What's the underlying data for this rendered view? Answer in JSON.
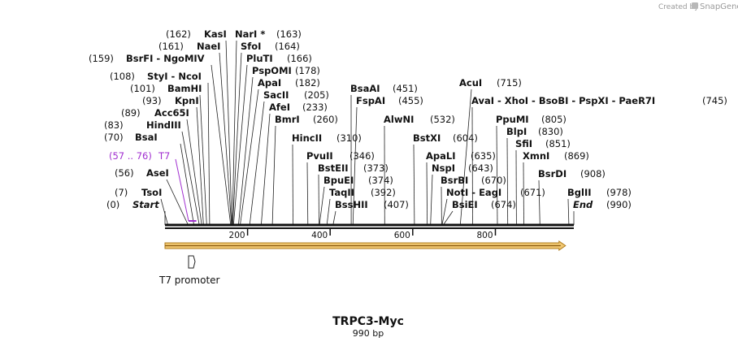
{
  "watermark": {
    "prefix": "Created by",
    "brand": "SnapGene"
  },
  "construct": {
    "name": "TRPC3-Myc",
    "length": "990 bp",
    "length_value": 990
  },
  "colors": {
    "t7_feature": "#a12fd0",
    "orf_fill": "#f1c873",
    "orf_edge": "#b07b1a",
    "backbone": "#111111"
  },
  "ruler": {
    "ticks": [
      200,
      400,
      600,
      800
    ]
  },
  "sites": [
    {
      "pos": "(0)",
      "name": "Start",
      "at": 0,
      "italic": true
    },
    {
      "pos": "(7)",
      "name": "TsoI",
      "at": 7
    },
    {
      "pos": "(56)",
      "name": "AseI",
      "at": 56
    },
    {
      "pos": "(70)",
      "name": "BsaI",
      "at": 70
    },
    {
      "pos": "(83)",
      "name": "HindIII",
      "at": 83
    },
    {
      "pos": "(89)",
      "name": "Acc65I",
      "at": 89
    },
    {
      "pos": "(93)",
      "name": "KpnI",
      "at": 93
    },
    {
      "pos": "(101)",
      "name": "BamHI",
      "at": 101
    },
    {
      "pos": "(108)",
      "name": "StyI - NcoI",
      "at": 108
    },
    {
      "pos": "(159)",
      "name": "BsrFI - NgoMIV",
      "at": 159
    },
    {
      "pos": "(161)",
      "name": "NaeI",
      "at": 161
    },
    {
      "pos": "(162)",
      "name": "KasI",
      "at": 162
    },
    {
      "pos": "(163)",
      "name": "NarI *",
      "at": 163
    },
    {
      "pos": "(164)",
      "name": "SfoI",
      "at": 164
    },
    {
      "pos": "(166)",
      "name": "PluTI",
      "at": 166
    },
    {
      "pos": "(178)",
      "name": "PspOMI",
      "at": 178
    },
    {
      "pos": "(182)",
      "name": "ApaI",
      "at": 182
    },
    {
      "pos": "(205)",
      "name": "SacII",
      "at": 205
    },
    {
      "pos": "(233)",
      "name": "AfeI",
      "at": 233
    },
    {
      "pos": "(260)",
      "name": "BmrI",
      "at": 260
    },
    {
      "pos": "(310)",
      "name": "HincII",
      "at": 310
    },
    {
      "pos": "(346)",
      "name": "PvuII",
      "at": 346
    },
    {
      "pos": "(373)",
      "name": "BstEII",
      "at": 373
    },
    {
      "pos": "(374)",
      "name": "BpuEI",
      "at": 374
    },
    {
      "pos": "(392)",
      "name": "TaqII",
      "at": 392
    },
    {
      "pos": "(407)",
      "name": "BssHII",
      "at": 407
    },
    {
      "pos": "(451)",
      "name": "BsaAI",
      "at": 451
    },
    {
      "pos": "(455)",
      "name": "FspAI",
      "at": 455
    },
    {
      "pos": "(532)",
      "name": "AlwNI",
      "at": 532
    },
    {
      "pos": "(604)",
      "name": "BstXI",
      "at": 604
    },
    {
      "pos": "(635)",
      "name": "ApaLI",
      "at": 635
    },
    {
      "pos": "(643)",
      "name": "NspI",
      "at": 643
    },
    {
      "pos": "(670)",
      "name": "BsrBI",
      "at": 670
    },
    {
      "pos": "(671)",
      "name": "NotI - EagI",
      "at": 671
    },
    {
      "pos": "(674)",
      "name": "BsiEI",
      "at": 674
    },
    {
      "pos": "(715)",
      "name": "AcuI",
      "at": 715
    },
    {
      "pos": "(745)",
      "name": "AvaI - XhoI - BsoBI - PspXI - PaeR7I",
      "at": 745
    },
    {
      "pos": "(805)",
      "name": "PpuMI",
      "at": 805
    },
    {
      "pos": "(830)",
      "name": "BlpI",
      "at": 830
    },
    {
      "pos": "(851)",
      "name": "SfiI",
      "at": 851
    },
    {
      "pos": "(869)",
      "name": "XmnI",
      "at": 869
    },
    {
      "pos": "(908)",
      "name": "BsrDI",
      "at": 908
    },
    {
      "pos": "(978)",
      "name": "BglII",
      "at": 978
    },
    {
      "pos": "(990)",
      "name": "End",
      "at": 990,
      "italic": true
    }
  ],
  "primer_site": {
    "range": "(57 .. 76)",
    "name": "T7",
    "start": 57,
    "end": 76
  },
  "features": {
    "promoter_label": "T7 promoter",
    "orf_start": 0,
    "orf_end": 970
  }
}
